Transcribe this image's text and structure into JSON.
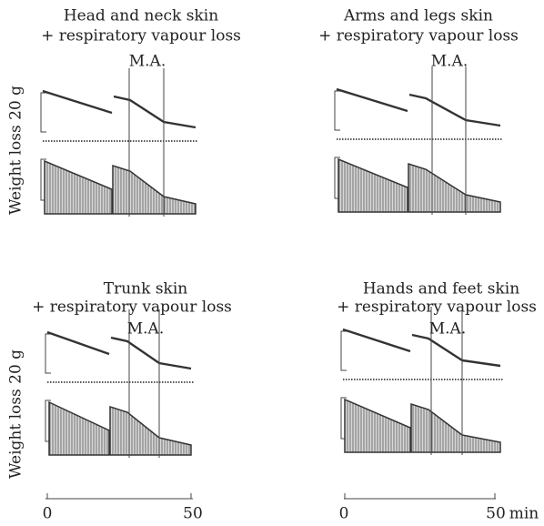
{
  "panels": [
    {
      "title": "Head and neck skin",
      "subtitle": "+ respiratory vapour loss",
      "marker": "M.A."
    },
    {
      "title": "Arms and legs skin",
      "subtitle": "+ respiratory vapour loss",
      "marker": "M.A."
    },
    {
      "title": "Trunk skin",
      "subtitle": "+ respiratory vapour loss",
      "marker": "M.A."
    },
    {
      "title": "Hands and feet skin",
      "subtitle": "+ respiratory vapour loss",
      "marker": "M.A."
    }
  ],
  "y_labels": [
    "Weight loss 20 g",
    "Weight loss 20 g"
  ],
  "time_axes": [
    {
      "ticks": [
        "0",
        "50"
      ]
    },
    {
      "ticks": [
        "0",
        "50"
      ],
      "unit": "min"
    }
  ]
}
